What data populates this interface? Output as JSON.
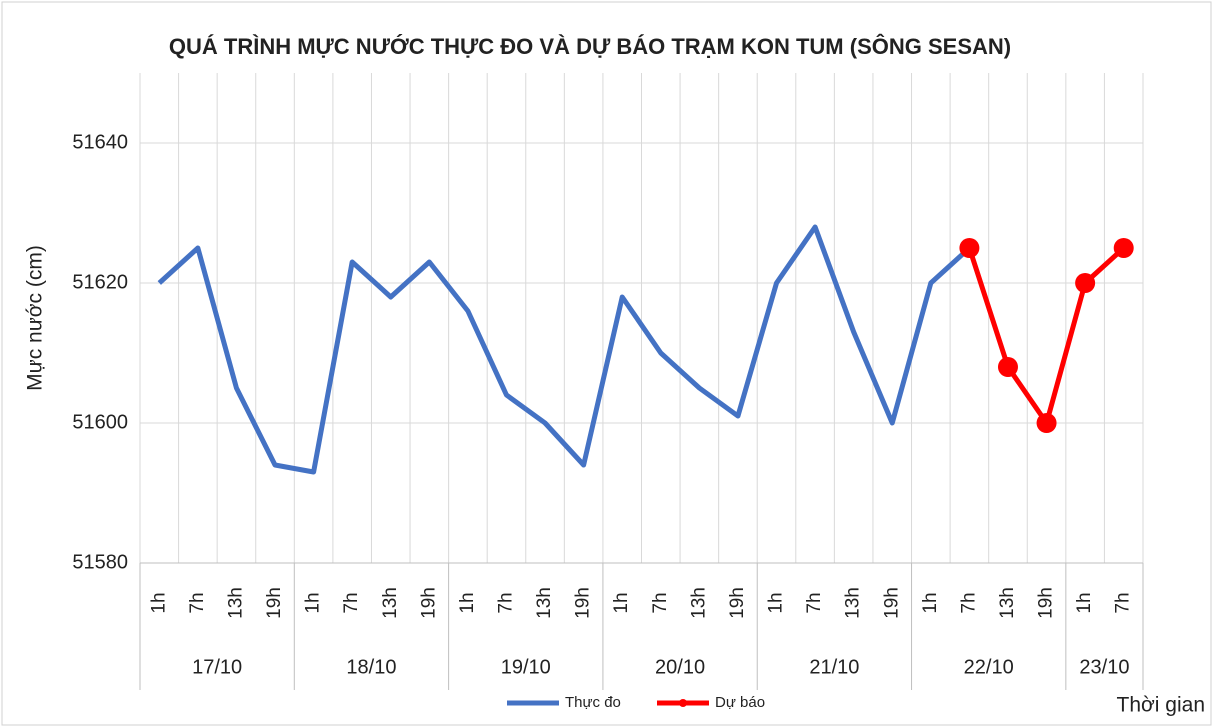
{
  "chart_data": {
    "type": "line",
    "title": "QUÁ TRÌNH MỰC NƯỚC THỰC ĐO VÀ DỰ BÁO TRẠM KON TUM (SÔNG SESAN)",
    "ylabel": "Mực nước (cm)",
    "xlabel": "Thời gian",
    "categories": [
      "1h",
      "7h",
      "13h",
      "19h",
      "1h",
      "7h",
      "13h",
      "19h",
      "1h",
      "7h",
      "13h",
      "19h",
      "1h",
      "7h",
      "13h",
      "19h",
      "1h",
      "7h",
      "13h",
      "19h",
      "1h",
      "7h",
      "13h",
      "19h",
      "1h",
      "7h"
    ],
    "group_labels": [
      "17/10",
      "18/10",
      "19/10",
      "20/10",
      "21/10",
      "22/10",
      "23/10"
    ],
    "group_sizes": [
      4,
      4,
      4,
      4,
      4,
      4,
      2
    ],
    "series": [
      {
        "name": "Thực đo",
        "color": "#4472c4",
        "markers": false,
        "values": [
          51620,
          51625,
          51605,
          51594,
          51593,
          51623,
          51618,
          51623,
          51616,
          51604,
          51600,
          51594,
          51618,
          51610,
          51605,
          51601,
          51620,
          51628,
          51613,
          51600,
          51620,
          51625,
          null,
          null,
          null,
          null
        ]
      },
      {
        "name": "Dự báo",
        "color": "#ff0000",
        "markers": true,
        "values": [
          null,
          null,
          null,
          null,
          null,
          null,
          null,
          null,
          null,
          null,
          null,
          null,
          null,
          null,
          null,
          null,
          null,
          null,
          null,
          null,
          null,
          51625,
          51608,
          51600,
          51620,
          51625
        ]
      }
    ],
    "ylim": [
      51580,
      51650
    ],
    "yticks": [
      51580,
      51600,
      51620,
      51640
    ],
    "grid": true
  }
}
